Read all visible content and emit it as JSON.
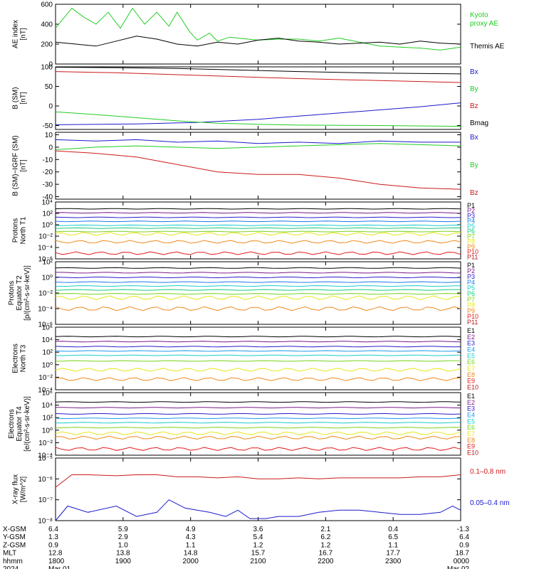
{
  "chart_data": {
    "type": "multi-panel-line",
    "panels": [
      {
        "id": "ae",
        "ylabel": [
          "AE index",
          "[nT]"
        ],
        "scale": "linear",
        "ylim": [
          0,
          600
        ],
        "ticks": [
          0,
          200,
          400,
          600
        ],
        "tick_labels": [
          "0",
          "200",
          "400",
          "600"
        ],
        "series": [
          {
            "name": "Kyoto proxy AE",
            "label_lines": [
              "Kyoto",
              "proxy AE"
            ],
            "color": "#22cc22",
            "x": [
              0,
              0.04,
              0.07,
              0.1,
              0.13,
              0.16,
              0.19,
              0.22,
              0.25,
              0.28,
              0.3,
              0.33,
              0.35,
              0.38,
              0.4,
              0.43,
              0.45,
              0.5,
              0.55,
              0.6,
              0.65,
              0.7,
              0.75,
              0.8,
              0.85,
              0.9,
              0.95,
              1.0
            ],
            "y": [
              360,
              560,
              470,
              400,
              520,
              360,
              560,
              400,
              520,
              380,
              520,
              330,
              240,
              310,
              230,
              270,
              260,
              240,
              250,
              250,
              230,
              260,
              220,
              180,
              170,
              160,
              140,
              170
            ]
          },
          {
            "name": "Themis AE",
            "label_lines": [
              "Themis AE"
            ],
            "color": "#000000",
            "x": [
              0,
              0.05,
              0.1,
              0.15,
              0.2,
              0.25,
              0.3,
              0.35,
              0.4,
              0.45,
              0.5,
              0.55,
              0.6,
              0.65,
              0.7,
              0.75,
              0.8,
              0.85,
              0.9,
              0.95,
              1.0
            ],
            "y": [
              220,
              200,
              180,
              230,
              280,
              250,
              200,
              180,
              220,
              200,
              240,
              260,
              230,
              220,
              200,
              210,
              220,
              200,
              230,
              210,
              200
            ]
          }
        ]
      },
      {
        "id": "bsm",
        "ylabel": [
          "B (SM)",
          "[nT]"
        ],
        "scale": "linear",
        "ylim": [
          -60,
          100
        ],
        "ticks": [
          -50,
          0,
          50,
          100
        ],
        "tick_labels": [
          "-50",
          "0",
          "50",
          "100"
        ],
        "series": [
          {
            "name": "Bx",
            "color": "#1a1acc",
            "x": [
              0,
              0.2,
              0.35,
              0.5,
              0.6,
              0.7,
              0.8,
              0.9,
              1.0
            ],
            "y": [
              -48,
              -46,
              -42,
              -34,
              -26,
              -18,
              -10,
              -2,
              8
            ]
          },
          {
            "name": "By",
            "color": "#22cc22",
            "x": [
              0,
              0.1,
              0.2,
              0.3,
              0.4,
              0.5,
              0.6,
              0.8,
              1.0
            ],
            "y": [
              -15,
              -22,
              -30,
              -38,
              -44,
              -47,
              -49,
              -50,
              -52
            ]
          },
          {
            "name": "Bz",
            "color": "#cc1a1a",
            "x": [
              0,
              0.15,
              0.3,
              0.45,
              0.6,
              0.8,
              1.0
            ],
            "y": [
              88,
              85,
              80,
              75,
              70,
              65,
              60
            ]
          },
          {
            "name": "Bmag",
            "color": "#000000",
            "x": [
              0,
              0.15,
              0.3,
              0.45,
              0.6,
              0.8,
              1.0
            ],
            "y": [
              99,
              98,
              96,
              92,
              88,
              84,
              82
            ]
          }
        ]
      },
      {
        "id": "bsm_igrf",
        "ylabel": [
          "B (SM)−IGRF (SM)",
          "[nT]"
        ],
        "scale": "linear",
        "ylim": [
          -42,
          12
        ],
        "ticks": [
          -40,
          -30,
          -20,
          -10,
          0,
          10
        ],
        "tick_labels": [
          "-40",
          "-30",
          "-20",
          "-10",
          "0",
          "10"
        ],
        "series": [
          {
            "name": "Bx",
            "color": "#1a1acc",
            "x": [
              0,
              0.1,
              0.2,
              0.3,
              0.4,
              0.5,
              0.6,
              0.7,
              0.8,
              0.9,
              1.0
            ],
            "y": [
              6,
              5,
              6,
              4,
              5,
              3,
              4,
              3,
              5,
              4,
              4
            ]
          },
          {
            "name": "By",
            "color": "#22cc22",
            "x": [
              0,
              0.1,
              0.2,
              0.3,
              0.4,
              0.5,
              0.6,
              0.7,
              0.8,
              0.9,
              1.0
            ],
            "y": [
              -2,
              0,
              1,
              0,
              -1,
              0,
              1,
              2,
              3,
              2,
              1
            ]
          },
          {
            "name": "Bz",
            "color": "#cc1a1a",
            "x": [
              0,
              0.1,
              0.2,
              0.3,
              0.4,
              0.5,
              0.6,
              0.7,
              0.8,
              0.9,
              1.0
            ],
            "y": [
              -3,
              -5,
              -8,
              -14,
              -20,
              -22,
              -22,
              -25,
              -30,
              -33,
              -34
            ]
          }
        ]
      },
      {
        "id": "protons_t1",
        "ylabel": [
          "Protons",
          "North T1"
        ],
        "scale": "log",
        "ylim": [
          -6,
          4
        ],
        "ticks": [
          4,
          2,
          0,
          -2,
          -4,
          -6
        ],
        "tick_labels": [
          "10⁴",
          "10²",
          "10⁰",
          "10⁻²",
          "10⁻⁴",
          "10⁻⁶"
        ],
        "channels": [
          "P1",
          "P2",
          "P3",
          "P4",
          "P5",
          "P6",
          "P7",
          "P8",
          "P9",
          "P10",
          "P11"
        ],
        "levels": [
          2.8,
          2.1,
          1.3,
          0.6,
          -0.1,
          -0.6,
          -1.2,
          -1.6,
          -3.0,
          -5.0,
          -6.5
        ]
      },
      {
        "id": "protons_t2",
        "ylabel": [
          "Protons",
          "Equator T2",
          "[p/(cm²-s-sr-keV)]"
        ],
        "scale": "log",
        "ylim": [
          -6,
          2
        ],
        "ticks": [
          2,
          0,
          -2,
          -4,
          -6
        ],
        "tick_labels": [
          "10²",
          "10⁰",
          "10⁻²",
          "10⁻⁴",
          "10⁻⁶"
        ],
        "channels": [
          "P1",
          "P2",
          "P3",
          "P4",
          "P5",
          "P6",
          "P7",
          "P8",
          "P9",
          "P10",
          "P11"
        ],
        "levels": [
          1.2,
          0.6,
          0.0,
          -0.6,
          -1.1,
          -1.6,
          -2.1,
          -2.6,
          -4.0,
          -6.5,
          -7.5
        ]
      },
      {
        "id": "electrons_t3",
        "ylabel": [
          "Electrons",
          "North T3"
        ],
        "scale": "log",
        "ylim": [
          -4,
          6
        ],
        "ticks": [
          6,
          4,
          2,
          0,
          -2,
          -4
        ],
        "tick_labels": [
          "10⁶",
          "10⁴",
          "10²",
          "10⁰",
          "10⁻²",
          "10⁻⁴"
        ],
        "channels": [
          "E1",
          "E2",
          "E3",
          "E4",
          "E5",
          "E6",
          "E7",
          "E8",
          "E9",
          "E10"
        ],
        "levels": [
          4.5,
          3.7,
          2.9,
          2.2,
          1.5,
          0.6,
          -0.8,
          -2.3,
          -5.0,
          -6.0
        ]
      },
      {
        "id": "electrons_t4",
        "ylabel": [
          "Electrons",
          "Equator T4",
          "[e/(cm²-s-sr-keV)]"
        ],
        "scale": "log",
        "ylim": [
          -4,
          6
        ],
        "ticks": [
          6,
          4,
          2,
          0,
          -2,
          -4
        ],
        "tick_labels": [
          "10⁶",
          "10⁴",
          "10²",
          "10⁰",
          "10⁻²",
          "10⁻⁴"
        ],
        "channels": [
          "E1",
          "E2",
          "E3",
          "E4",
          "E5",
          "E6",
          "E7",
          "E8",
          "E9",
          "E10"
        ],
        "levels": [
          4.5,
          3.6,
          2.6,
          1.9,
          1.2,
          0.4,
          -0.5,
          -1.2,
          -3.0,
          -5.0
        ]
      },
      {
        "id": "xray",
        "ylabel": [
          "X-ray flux",
          "[W/m^2]"
        ],
        "scale": "log",
        "ylim": [
          -8,
          -5
        ],
        "ticks": [
          -5,
          -6,
          -7,
          -8
        ],
        "tick_labels": [
          "10⁻⁵",
          "10⁻⁶",
          "10⁻⁷",
          "10⁻⁸"
        ],
        "series": [
          {
            "name": "0.1–0.8 nm",
            "color": "#cc1a1a",
            "x": [
              0,
              0.04,
              0.08,
              0.15,
              0.2,
              0.25,
              0.3,
              0.35,
              0.4,
              0.45,
              0.5,
              0.55,
              0.6,
              0.65,
              0.7,
              0.75,
              0.8,
              0.85,
              0.9,
              0.95,
              1.0
            ],
            "y": [
              -6.4,
              -5.8,
              -5.8,
              -5.85,
              -5.8,
              -5.8,
              -5.9,
              -5.9,
              -5.95,
              -5.9,
              -6.0,
              -6.0,
              -5.95,
              -6.0,
              -5.95,
              -5.95,
              -5.95,
              -5.95,
              -5.9,
              -5.9,
              -5.8
            ]
          },
          {
            "name": "0.05–0.4 nm",
            "color": "#1a1acc",
            "x": [
              0,
              0.03,
              0.08,
              0.15,
              0.2,
              0.25,
              0.28,
              0.32,
              0.38,
              0.42,
              0.45,
              0.48,
              0.52,
              0.55,
              0.6,
              0.65,
              0.7,
              0.75,
              0.8,
              0.85,
              0.9,
              0.95,
              0.98,
              1.0
            ],
            "y": [
              -8.0,
              -7.3,
              -7.6,
              -7.3,
              -7.8,
              -7.6,
              -7.0,
              -7.4,
              -7.6,
              -7.8,
              -7.5,
              -7.9,
              -7.9,
              -7.8,
              -7.8,
              -7.6,
              -7.5,
              -7.5,
              -7.6,
              -7.7,
              -7.7,
              -7.6,
              -7.3,
              -7.5
            ]
          }
        ]
      }
    ],
    "time_axis": {
      "row_labels": [
        "X-GSM",
        "Y-GSM",
        "Z-GSM",
        "MLT",
        "hhmm",
        "2024"
      ],
      "columns": [
        {
          "values": [
            "6.4",
            "1.3",
            "0.9",
            "12.8",
            "1800",
            "Mar 01"
          ]
        },
        {
          "values": [
            "5.9",
            "2.9",
            "1.0",
            "13.8",
            "1900",
            ""
          ]
        },
        {
          "values": [
            "4.9",
            "4.3",
            "1.1",
            "14.8",
            "2000",
            ""
          ]
        },
        {
          "values": [
            "3.6",
            "5.4",
            "1.2",
            "15.7",
            "2100",
            ""
          ]
        },
        {
          "values": [
            "2.1",
            "6.2",
            "1.2",
            "16.7",
            "2200",
            ""
          ]
        },
        {
          "values": [
            "0.4",
            "6.5",
            "1.1",
            "17.7",
            "2300",
            ""
          ]
        },
        {
          "values": [
            "-1.3",
            "6.4",
            "0.9",
            "18.7",
            "0000",
            "Mar 02"
          ]
        }
      ]
    }
  },
  "colors": {
    "channels11": [
      "#000000",
      "#7a1a8a",
      "#2a1acc",
      "#1a7aee",
      "#1acccc",
      "#1acc7a",
      "#7ad21a",
      "#e6e61a",
      "#ee8a1a",
      "#e61a1a",
      "#b81a1a"
    ],
    "channels10": [
      "#000000",
      "#7a1a8a",
      "#2a1acc",
      "#1a9aee",
      "#1acccc",
      "#7ad21a",
      "#e6e61a",
      "#ee8a1a",
      "#e61a1a",
      "#b81a1a"
    ]
  }
}
